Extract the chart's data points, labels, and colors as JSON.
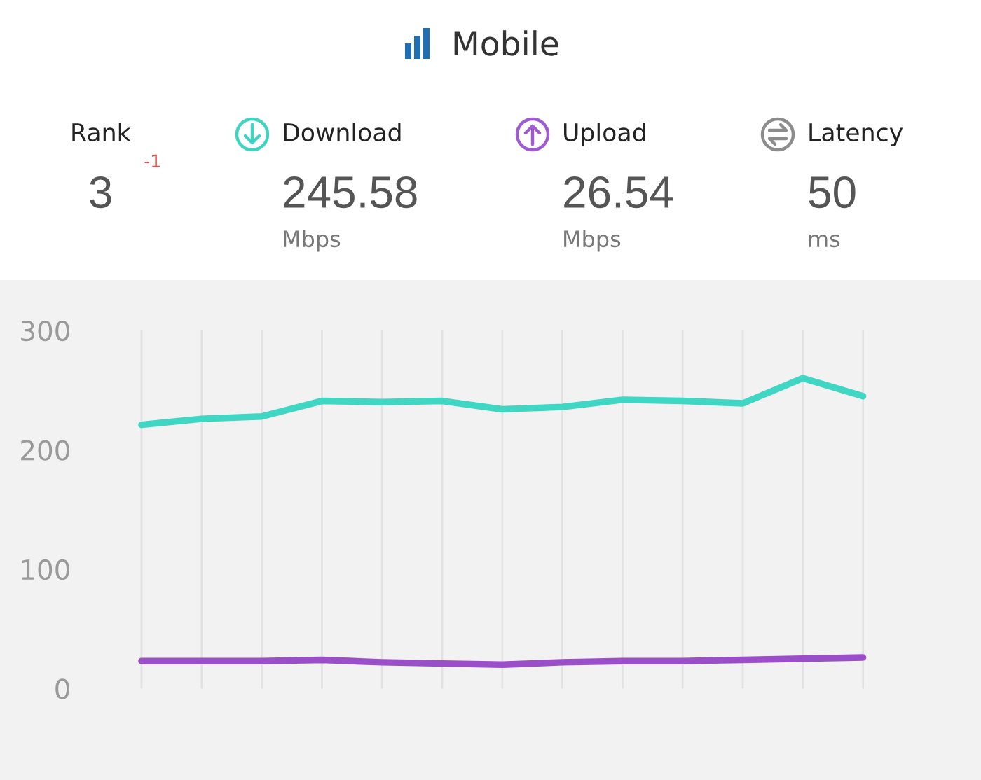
{
  "chart_data": [
    {
      "type": "other",
      "title": "Mobile",
      "categories": [
        "Rank",
        "Download",
        "Upload",
        "Latency"
      ],
      "values": [
        3,
        245.58,
        26.54,
        50
      ],
      "data_labels": true,
      "colors": [
        null,
        "#3fd3c1",
        "#a05ccf",
        "#8c8c8c"
      ],
      "annotations": [
        "-1",
        "Mbps",
        "Mbps",
        "ms"
      ]
    },
    {
      "type": "line",
      "categories": [
        null,
        null,
        null,
        null,
        null,
        null,
        null,
        null,
        null,
        null,
        null,
        null,
        null
      ],
      "series": [
        {
          "color": "#3fd6c3",
          "values": [
            221,
            226,
            228,
            241,
            240,
            241,
            234,
            236,
            242,
            241,
            239,
            260,
            245
          ]
        },
        {
          "color": "#9a4fc9",
          "values": [
            23,
            23,
            23,
            24,
            22,
            21,
            20,
            22,
            23,
            23,
            24,
            25,
            26
          ]
        }
      ],
      "ylim": [
        0,
        300
      ],
      "yticks": [
        0,
        100,
        200,
        300
      ],
      "grid": "x",
      "tick_labels": "y"
    }
  ]
}
